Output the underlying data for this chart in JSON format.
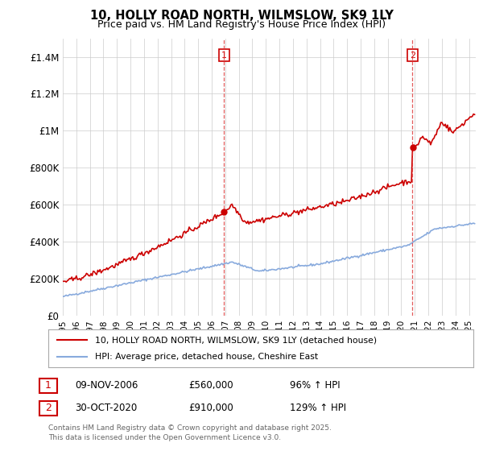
{
  "title": "10, HOLLY ROAD NORTH, WILMSLOW, SK9 1LY",
  "subtitle": "Price paid vs. HM Land Registry's House Price Index (HPI)",
  "xlim_start": 1995.0,
  "xlim_end": 2025.5,
  "ylim": [
    0,
    1500000
  ],
  "yticks": [
    0,
    200000,
    400000,
    600000,
    800000,
    1000000,
    1200000,
    1400000
  ],
  "ytick_labels": [
    "£0",
    "£200K",
    "£400K",
    "£600K",
    "£800K",
    "£1M",
    "£1.2M",
    "£1.4M"
  ],
  "xticks": [
    1995,
    1996,
    1997,
    1998,
    1999,
    2000,
    2001,
    2002,
    2003,
    2004,
    2005,
    2006,
    2007,
    2008,
    2009,
    2010,
    2011,
    2012,
    2013,
    2014,
    2015,
    2016,
    2017,
    2018,
    2019,
    2020,
    2021,
    2022,
    2023,
    2024,
    2025
  ],
  "vline1_x": 2006.92,
  "vline2_x": 2020.83,
  "sale1_date": "09-NOV-2006",
  "sale1_price": "£560,000",
  "sale1_hpi": "96% ↑ HPI",
  "sale2_date": "30-OCT-2020",
  "sale2_price": "£910,000",
  "sale2_hpi": "129% ↑ HPI",
  "legend_line1": "10, HOLLY ROAD NORTH, WILMSLOW, SK9 1LY (detached house)",
  "legend_line2": "HPI: Average price, detached house, Cheshire East",
  "footer": "Contains HM Land Registry data © Crown copyright and database right 2025.\nThis data is licensed under the Open Government Licence v3.0.",
  "price_color": "#cc0000",
  "hpi_color": "#88aadd",
  "background_color": "#ffffff",
  "grid_color": "#cccccc"
}
